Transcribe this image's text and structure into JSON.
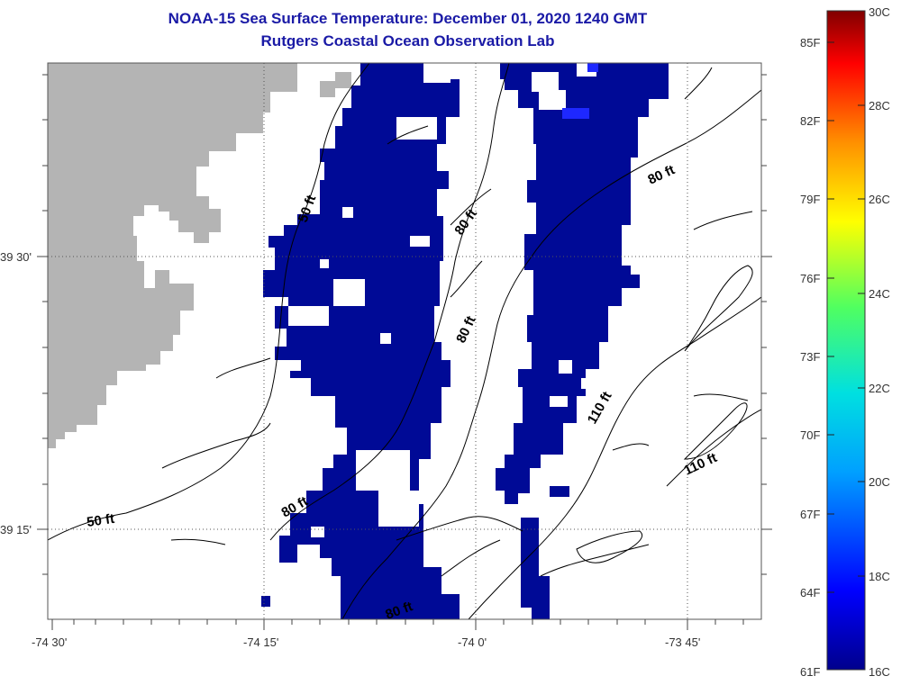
{
  "title": {
    "line1": "NOAA-15 Sea Surface Temperature:  December 01, 2020 1240 GMT",
    "line2": "Rutgers Coastal Ocean Observation Lab"
  },
  "axes": {
    "x_ticks": [
      "-74 30'",
      "-74 15'",
      "-74 0'",
      "-73 45'"
    ],
    "y_ticks": [
      "39 30'",
      "39 15'"
    ]
  },
  "depth_contours": [
    "50 ft",
    "80 ft",
    "80 ft",
    "80 ft",
    "110 ft",
    "110 ft",
    "50 ft",
    "80 ft",
    "80 ft"
  ],
  "colorbar": {
    "fahrenheit": [
      "85F",
      "82F",
      "79F",
      "76F",
      "73F",
      "70F",
      "67F",
      "64F",
      "61F"
    ],
    "celsius": [
      "30C",
      "28C",
      "26C",
      "24C",
      "22C",
      "20C",
      "18C",
      "16C"
    ],
    "range_c": [
      16,
      30
    ]
  },
  "colors": {
    "land": "#b4b4b4",
    "cold_water": "#000a96",
    "cloud": "#ffffff",
    "title": "#1a1aa6"
  }
}
